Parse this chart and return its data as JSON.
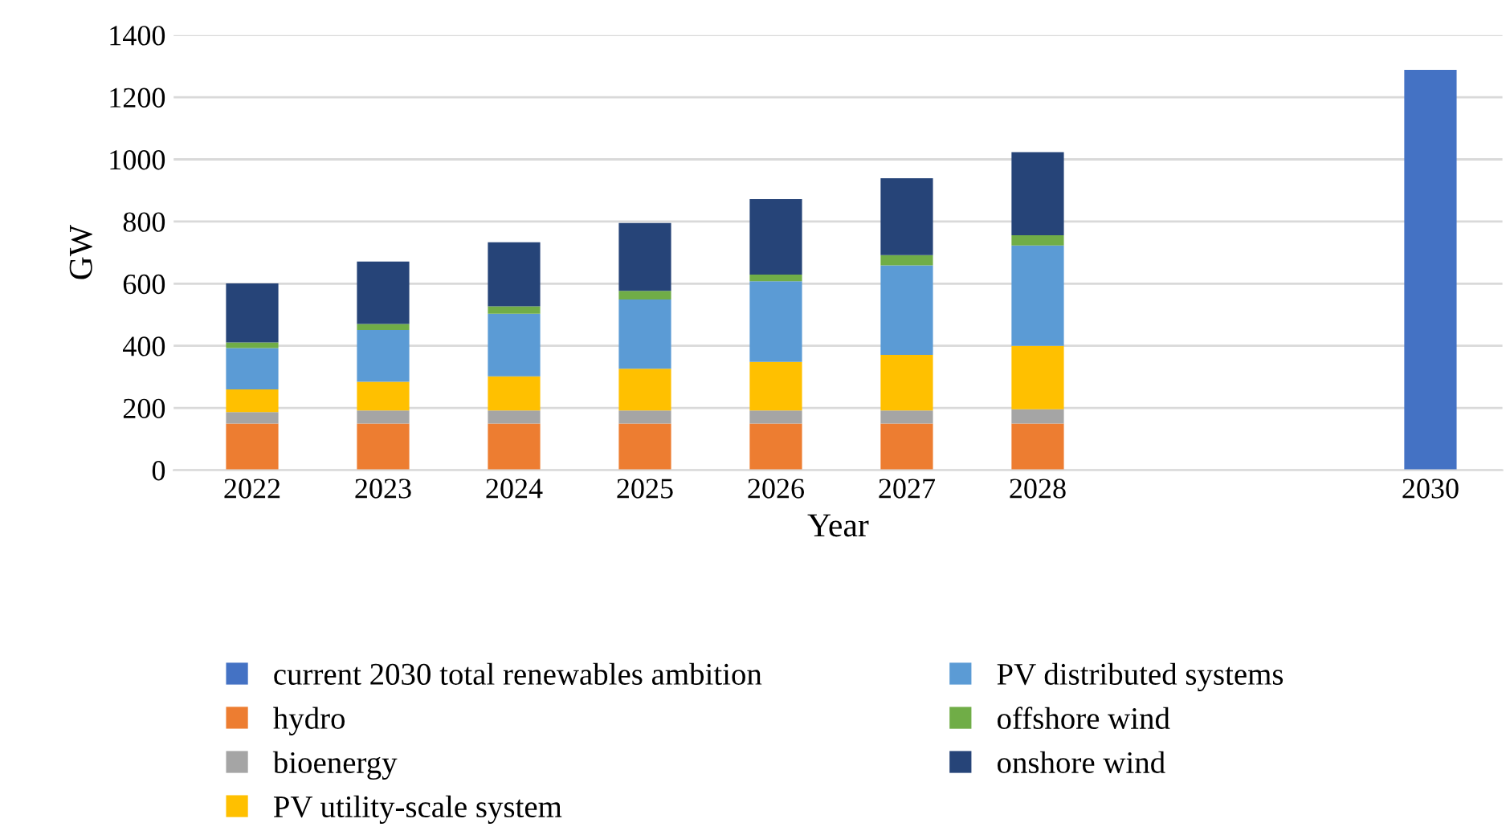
{
  "chart_data": {
    "type": "bar",
    "stacked": true,
    "xlabel": "Year",
    "ylabel": "GW",
    "categories": [
      "2022",
      "2023",
      "2024",
      "2025",
      "2026",
      "2027",
      "2028",
      null,
      null,
      "2030"
    ],
    "series": [
      {
        "name": "current 2030 total renewables ambition",
        "color": "#4472c4",
        "values": [
          null,
          null,
          null,
          null,
          null,
          null,
          null,
          null,
          null,
          1288
        ]
      },
      {
        "name": "hydro",
        "color": "#ed7d31",
        "values": [
          150,
          150,
          150,
          150,
          150,
          150,
          150,
          null,
          null,
          null
        ]
      },
      {
        "name": "bioenergy",
        "color": "#a5a5a5",
        "values": [
          37,
          42,
          42,
          42,
          42,
          42,
          46,
          null,
          null,
          null
        ]
      },
      {
        "name": "PV utility-scale system",
        "color": "#ffc000",
        "values": [
          73,
          92,
          110,
          134,
          156,
          179,
          204,
          null,
          null,
          null
        ]
      },
      {
        "name": "PV distributed systems",
        "color": "#5b9bd5",
        "values": [
          133,
          167,
          201,
          223,
          260,
          288,
          323,
          null,
          null,
          null
        ]
      },
      {
        "name": "offshore wind",
        "color": "#70ad47",
        "values": [
          18,
          19,
          24,
          28,
          21,
          33,
          33,
          null,
          null,
          null
        ]
      },
      {
        "name": "onshore wind",
        "color": "#264478",
        "values": [
          190,
          201,
          206,
          218,
          243,
          247,
          267,
          null,
          null,
          null
        ]
      }
    ],
    "ylim": [
      0,
      1400
    ],
    "yticks": [
      0,
      200,
      400,
      600,
      800,
      1000,
      1200,
      1400
    ],
    "grid": "y",
    "legend": "bottom"
  }
}
